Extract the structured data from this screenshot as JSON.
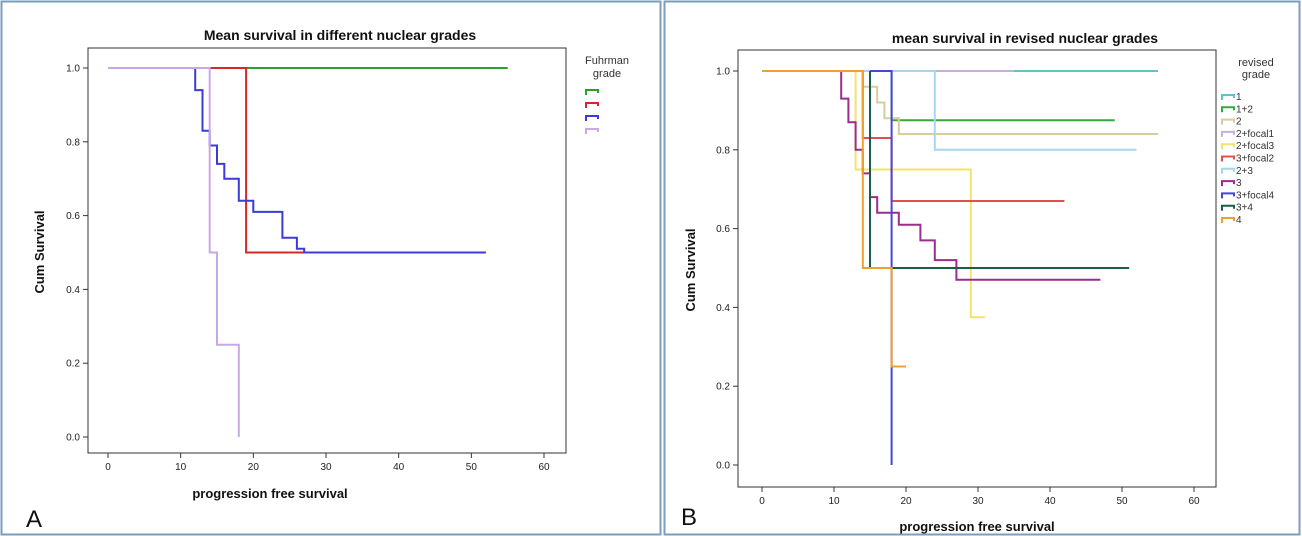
{
  "chart_data": [
    {
      "type": "line",
      "panel_label": "A",
      "title": "Mean survival in different nuclear grades",
      "xlabel": "progression free survival",
      "ylabel": "Cum Survival",
      "xlim": [
        0,
        60
      ],
      "ylim": [
        0,
        1
      ],
      "xticks": [
        "0",
        "10",
        "20",
        "30",
        "40",
        "50",
        "60"
      ],
      "yticks": [
        "0.0",
        "0.2",
        "0.4",
        "0.6",
        "0.8",
        "1.0"
      ],
      "legend": {
        "title": "Fuhrman grade",
        "position": "right",
        "colors": [
          "#2ca02c",
          "#d62728",
          "#3b3bd6",
          "#c9a8e6"
        ]
      },
      "series": [
        {
          "color": "#2ca02c",
          "steps": [
            [
              0,
              1.0
            ],
            [
              55,
              1.0
            ]
          ]
        },
        {
          "color": "#d62728",
          "steps": [
            [
              14,
              1.0
            ],
            [
              19,
              0.5
            ],
            [
              30,
              0.5
            ]
          ]
        },
        {
          "color": "#3b3bd6",
          "steps": [
            [
              0,
              1.0
            ],
            [
              12,
              0.94
            ],
            [
              13,
              0.83
            ],
            [
              14,
              0.79
            ],
            [
              15,
              0.74
            ],
            [
              16,
              0.7
            ],
            [
              18,
              0.64
            ],
            [
              20,
              0.61
            ],
            [
              24,
              0.54
            ],
            [
              26,
              0.51
            ],
            [
              27,
              0.5
            ],
            [
              52,
              0.5
            ]
          ]
        },
        {
          "color": "#c9a8e6",
          "steps": [
            [
              0,
              1.0
            ],
            [
              14,
              0.5
            ],
            [
              15,
              0.25
            ],
            [
              18,
              0.0
            ]
          ]
        }
      ]
    },
    {
      "type": "line",
      "panel_label": "B",
      "title": "mean survival in revised nuclear grades",
      "xlabel": "progression free survival",
      "ylabel": "Cum Survival",
      "xlim": [
        0,
        60
      ],
      "ylim": [
        0,
        1
      ],
      "xticks": [
        "0",
        "10",
        "20",
        "30",
        "40",
        "50",
        "60"
      ],
      "yticks": [
        "0.0",
        "0.2",
        "0.4",
        "0.6",
        "0.8",
        "1.0"
      ],
      "legend": {
        "title": "revised grade",
        "position": "right"
      },
      "series": [
        {
          "name": "1",
          "color": "#5fc3c8",
          "steps": [
            [
              0,
              1.0
            ],
            [
              55,
              1.0
            ]
          ]
        },
        {
          "name": "1+2",
          "color": "#35a840",
          "steps": [
            [
              15,
              1.0
            ],
            [
              18,
              0.875
            ],
            [
              49,
              0.875
            ]
          ]
        },
        {
          "name": "2",
          "color": "#d8cc9c",
          "steps": [
            [
              13,
              1.0
            ],
            [
              14,
              0.96
            ],
            [
              16,
              0.92
            ],
            [
              17,
              0.88
            ],
            [
              19,
              0.84
            ],
            [
              55,
              0.84
            ]
          ]
        },
        {
          "name": "2+focal1",
          "color": "#c4b0e0",
          "steps": [
            [
              10,
              1.0
            ],
            [
              35,
              1.0
            ]
          ]
        },
        {
          "name": "2+focal3",
          "color": "#f2e46a",
          "steps": [
            [
              12,
              1.0
            ],
            [
              13,
              0.75
            ],
            [
              29,
              0.375
            ],
            [
              31,
              0.375
            ]
          ]
        },
        {
          "name": "3+focal2",
          "color": "#e05050",
          "steps": [
            [
              12,
              1.0
            ],
            [
              14,
              0.83
            ],
            [
              18,
              0.67
            ],
            [
              42,
              0.67
            ]
          ]
        },
        {
          "name": "2+3",
          "color": "#a6d8ec",
          "steps": [
            [
              0,
              1.0
            ],
            [
              24,
              0.8
            ],
            [
              52,
              0.8
            ]
          ]
        },
        {
          "name": "3",
          "color": "#9b2d8e",
          "steps": [
            [
              0,
              1.0
            ],
            [
              11,
              0.93
            ],
            [
              12,
              0.87
            ],
            [
              13,
              0.8
            ],
            [
              14,
              0.74
            ],
            [
              15,
              0.68
            ],
            [
              16,
              0.64
            ],
            [
              19,
              0.61
            ],
            [
              22,
              0.57
            ],
            [
              24,
              0.52
            ],
            [
              27,
              0.47
            ],
            [
              47,
              0.47
            ]
          ]
        },
        {
          "name": "3+focal4",
          "color": "#4747d6",
          "steps": [
            [
              15,
              1.0
            ],
            [
              18,
              0.25
            ],
            [
              18,
              0.0
            ]
          ]
        },
        {
          "name": "3+4",
          "color": "#1a5e45",
          "steps": [
            [
              15,
              1.0
            ],
            [
              15,
              0.5
            ],
            [
              51,
              0.5
            ]
          ]
        },
        {
          "name": "4",
          "color": "#f0a030",
          "steps": [
            [
              0,
              1.0
            ],
            [
              14,
              0.5
            ],
            [
              18,
              0.25
            ],
            [
              20,
              0.25
            ]
          ]
        }
      ]
    }
  ]
}
